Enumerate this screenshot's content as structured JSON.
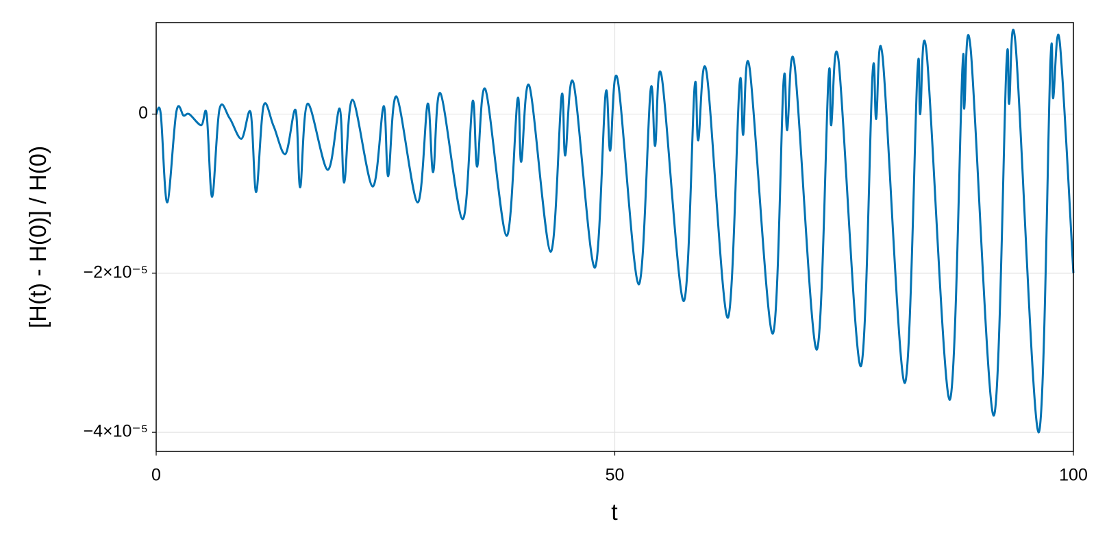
{
  "chart_data": {
    "type": "line",
    "xlabel": "t",
    "ylabel": "[H(t) - H(0)] / H(0)",
    "xlim": [
      0,
      100
    ],
    "ylim": [
      -4.24e-05,
      1.15e-05
    ],
    "xticks": [
      0,
      50,
      100
    ],
    "yticks": [
      0,
      {
        "value": -2e-05,
        "label": "−2×10⁻⁵"
      },
      {
        "value": -4e-05,
        "label": "−4×10⁻⁵"
      }
    ],
    "grid": true,
    "x": [
      0,
      0.5,
      1.2,
      2.2,
      3.0,
      3.6,
      4.9,
      5.5,
      6.1,
      6.9,
      8.0,
      9.3,
      10.3,
      10.9,
      11.7,
      12.8,
      14.1,
      15.2,
      15.7,
      16.5,
      18.7,
      20.0,
      20.5,
      21.4,
      23.6,
      24.8,
      25.3,
      26.2,
      28.5,
      29.6,
      30.2,
      31.0,
      33.4,
      34.5,
      35.0,
      35.9,
      38.2,
      39.4,
      39.8,
      40.7,
      43.0,
      44.2,
      44.6,
      45.5,
      47.8,
      49.0,
      49.5,
      50.3,
      52.6,
      53.9,
      54.4,
      55.1,
      57.5,
      58.7,
      59.1,
      60.0,
      62.3,
      63.6,
      64.0,
      64.7,
      67.2,
      68.4,
      68.8,
      69.6,
      72.0,
      73.3,
      73.6,
      74.4,
      76.8,
      78.1,
      78.5,
      79.2,
      81.6,
      83.0,
      83.3,
      84.0,
      86.5,
      87.9,
      88.1,
      88.8,
      91.3,
      92.7,
      93.0,
      93.7,
      96.2,
      97.5,
      97.8,
      98.5,
      100
    ],
    "series": [
      {
        "color": "#0072b2",
        "values": [
          0,
          0,
          -1.11e-05,
          3e-07,
          -2e-07,
          0,
          -1.4e-06,
          0,
          -1.04e-05,
          6e-07,
          -5e-07,
          -3.1e-06,
          2e-07,
          -9.8e-06,
          1e-06,
          -1.5e-06,
          -5e-06,
          5e-07,
          -9.2e-06,
          1.3e-06,
          -7e-06,
          7e-07,
          -8.6e-06,
          1.8e-06,
          -9.1e-06,
          1e-06,
          -7.8e-06,
          2.2e-06,
          -1.11e-05,
          1.3e-06,
          -7.3e-06,
          2.6e-06,
          -1.32e-05,
          1.6e-06,
          -6.6e-06,
          3.1e-06,
          -1.53e-05,
          1.9e-06,
          -6e-06,
          3.5e-06,
          -1.73e-05,
          2.3e-06,
          -5.2e-06,
          3.9e-06,
          -1.93e-05,
          2.6e-06,
          -4.6e-06,
          4.4e-06,
          -2.14e-05,
          3e-06,
          -4e-06,
          4.8e-06,
          -2.35e-05,
          3.4e-06,
          -3.3e-06,
          5.3e-06,
          -2.56e-05,
          3.7e-06,
          -2.6e-06,
          5.8e-06,
          -2.76e-05,
          4.1e-06,
          -2e-06,
          6.2e-06,
          -2.96e-05,
          4.6e-06,
          -1.4e-06,
          6.7e-06,
          -3.17e-05,
          5e-06,
          -6e-07,
          7.2e-06,
          -3.38e-05,
          5.4e-06,
          0,
          7.7e-06,
          -3.59e-05,
          5.8e-06,
          7e-07,
          8.2e-06,
          -3.79e-05,
          6.2e-06,
          1.3e-06,
          8.7e-06,
          -4e-05,
          6.7e-06,
          2e-06,
          9.2e-06,
          -2e-05
        ]
      }
    ]
  }
}
